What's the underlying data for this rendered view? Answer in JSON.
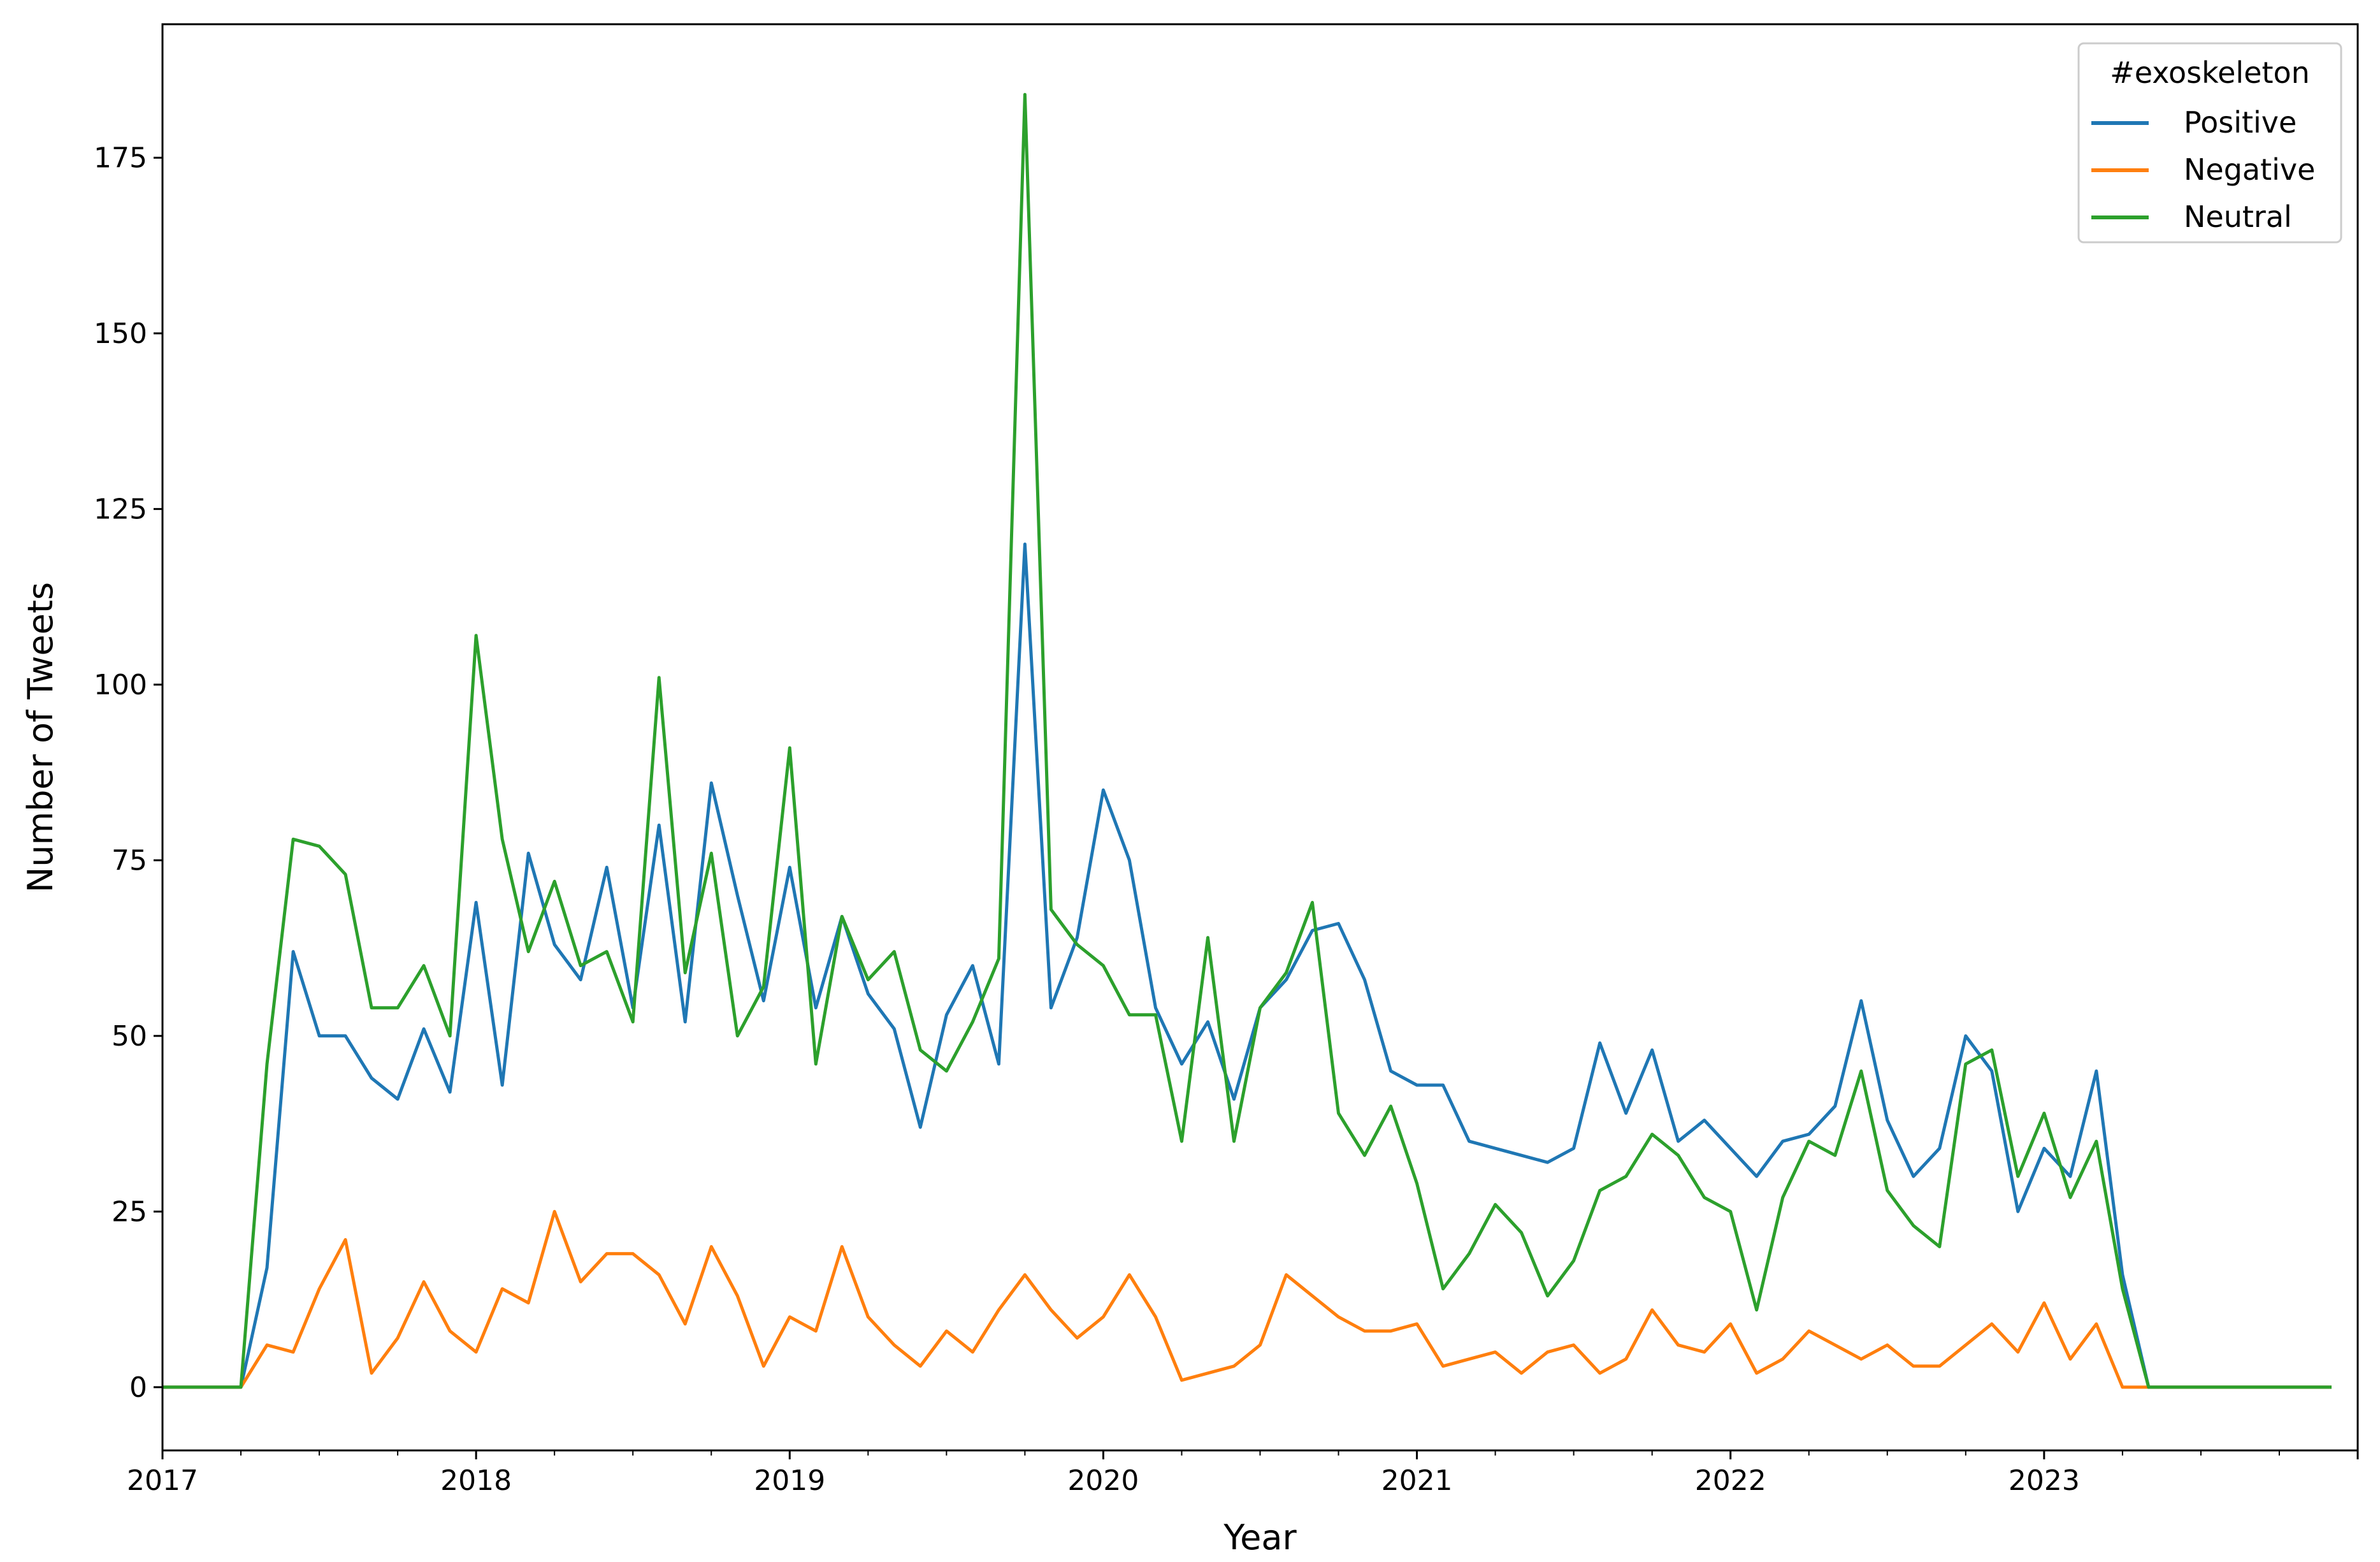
{
  "chart_data": {
    "type": "line",
    "xlabel": "Year",
    "ylabel": "Number of Tweets",
    "xlim": [
      "2017-01",
      "2024-01"
    ],
    "ylim": [
      -9,
      194
    ],
    "x_ticks": [
      "2017",
      "2018",
      "2019",
      "2020",
      "2021",
      "2022",
      "2023"
    ],
    "y_ticks": [
      "0",
      "25",
      "50",
      "75",
      "100",
      "125",
      "150",
      "175"
    ],
    "legend": {
      "title": "#exoskeleton",
      "position": "top-right"
    },
    "grid": false,
    "x": [
      "2017-01",
      "2017-02",
      "2017-03",
      "2017-04",
      "2017-05",
      "2017-06",
      "2017-07",
      "2017-08",
      "2017-09",
      "2017-10",
      "2017-11",
      "2017-12",
      "2018-01",
      "2018-02",
      "2018-03",
      "2018-04",
      "2018-05",
      "2018-06",
      "2018-07",
      "2018-08",
      "2018-09",
      "2018-10",
      "2018-11",
      "2018-12",
      "2019-01",
      "2019-02",
      "2019-03",
      "2019-04",
      "2019-05",
      "2019-06",
      "2019-07",
      "2019-08",
      "2019-09",
      "2019-10",
      "2019-11",
      "2019-12",
      "2020-01",
      "2020-02",
      "2020-03",
      "2020-04",
      "2020-05",
      "2020-06",
      "2020-07",
      "2020-08",
      "2020-09",
      "2020-10",
      "2020-11",
      "2020-12",
      "2021-01",
      "2021-02",
      "2021-03",
      "2021-04",
      "2021-05",
      "2021-06",
      "2021-07",
      "2021-08",
      "2021-09",
      "2021-10",
      "2021-11",
      "2021-12",
      "2022-01",
      "2022-02",
      "2022-03",
      "2022-04",
      "2022-05",
      "2022-06",
      "2022-07",
      "2022-08",
      "2022-09",
      "2022-10",
      "2022-11",
      "2022-12",
      "2023-01",
      "2023-02",
      "2023-03",
      "2023-04",
      "2023-05",
      "2023-06",
      "2023-07",
      "2023-08",
      "2023-09",
      "2023-10",
      "2023-11",
      "2023-12"
    ],
    "series": [
      {
        "name": "Positive",
        "color": "#1f77b4",
        "values": [
          0,
          0,
          0,
          0,
          17,
          62,
          50,
          50,
          44,
          41,
          51,
          42,
          69,
          43,
          76,
          63,
          58,
          74,
          54,
          80,
          52,
          86,
          70,
          55,
          74,
          54,
          67,
          56,
          51,
          37,
          53,
          60,
          46,
          120,
          54,
          64,
          85,
          75,
          54,
          46,
          52,
          41,
          54,
          58,
          65,
          66,
          58,
          45,
          43,
          43,
          35,
          34,
          33,
          32,
          34,
          49,
          39,
          48,
          35,
          38,
          34,
          30,
          35,
          36,
          40,
          55,
          38,
          30,
          34,
          50,
          45,
          25,
          34,
          30,
          45,
          16,
          0,
          0,
          0,
          0,
          0,
          0,
          0,
          0
        ]
      },
      {
        "name": "Negative",
        "color": "#ff7f0e",
        "values": [
          0,
          0,
          0,
          0,
          6,
          5,
          14,
          21,
          2,
          7,
          15,
          8,
          5,
          14,
          12,
          25,
          15,
          19,
          19,
          16,
          9,
          20,
          13,
          3,
          10,
          8,
          20,
          10,
          6,
          3,
          8,
          5,
          11,
          16,
          11,
          7,
          10,
          16,
          10,
          1,
          2,
          3,
          6,
          16,
          13,
          10,
          8,
          8,
          9,
          3,
          4,
          5,
          2,
          5,
          6,
          2,
          4,
          11,
          6,
          5,
          9,
          2,
          4,
          8,
          6,
          4,
          6,
          3,
          3,
          6,
          9,
          5,
          12,
          4,
          9,
          0,
          0,
          0,
          0,
          0,
          0,
          0,
          0,
          0
        ]
      },
      {
        "name": "Neutral",
        "color": "#2ca02c",
        "values": [
          0,
          0,
          0,
          0,
          46,
          78,
          77,
          73,
          54,
          54,
          60,
          50,
          107,
          78,
          62,
          72,
          60,
          62,
          52,
          101,
          59,
          76,
          50,
          57,
          91,
          46,
          67,
          58,
          62,
          48,
          45,
          52,
          61,
          184,
          68,
          63,
          60,
          53,
          53,
          35,
          64,
          35,
          54,
          59,
          69,
          39,
          33,
          40,
          29,
          14,
          19,
          26,
          22,
          13,
          18,
          28,
          30,
          36,
          33,
          27,
          25,
          11,
          27,
          35,
          33,
          45,
          28,
          23,
          20,
          46,
          48,
          30,
          39,
          27,
          35,
          14,
          0,
          0,
          0,
          0,
          0,
          0,
          0,
          0
        ]
      }
    ]
  }
}
